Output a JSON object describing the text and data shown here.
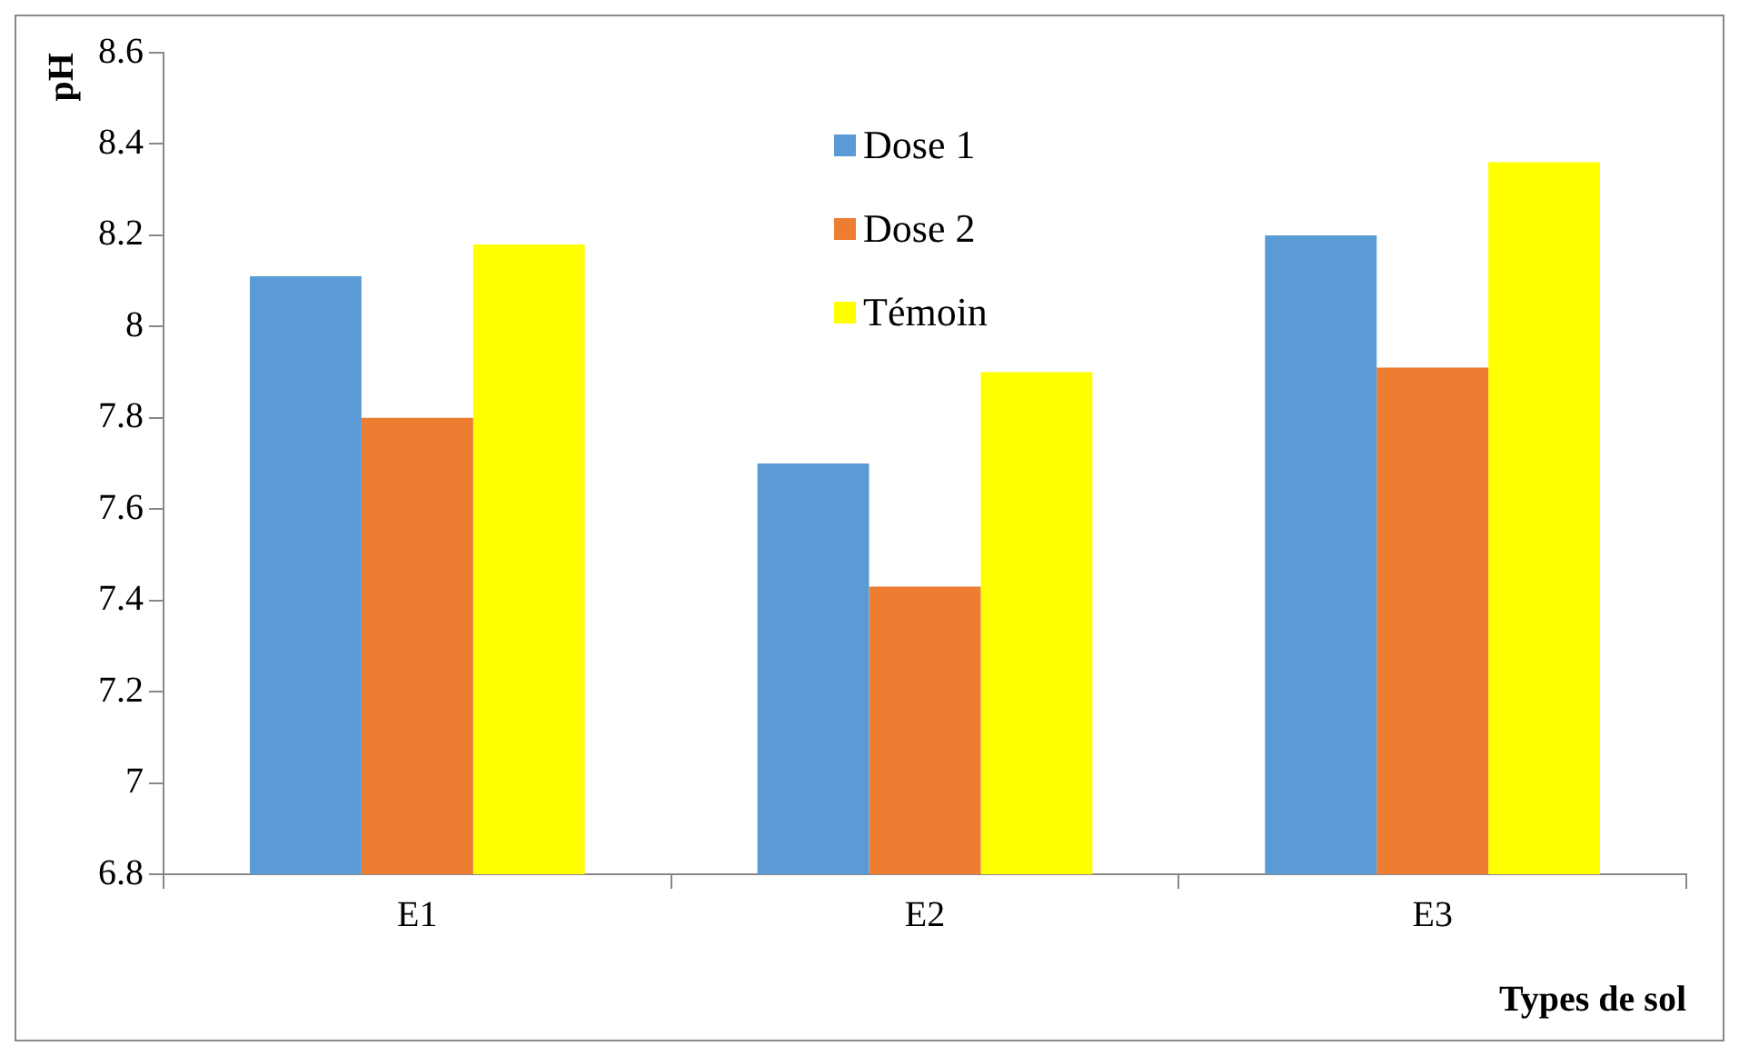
{
  "chart_data": {
    "type": "bar",
    "xlabel": "Types de sol",
    "ylabel": "pH",
    "categories": [
      "E1",
      "E2",
      "E3"
    ],
    "series": [
      {
        "name": "Dose 1",
        "color": "#5b9bd5",
        "values": [
          8.11,
          7.7,
          8.2
        ]
      },
      {
        "name": "Dose 2",
        "color": "#ed7d31",
        "values": [
          7.8,
          7.43,
          7.91
        ]
      },
      {
        "name": "Témoin",
        "color": "#ffff00",
        "values": [
          8.18,
          7.9,
          8.36
        ]
      }
    ],
    "ylim": [
      6.8,
      8.6
    ],
    "yticks": [
      6.8,
      7,
      7.2,
      7.4,
      7.6,
      7.8,
      8,
      8.2,
      8.4,
      8.6
    ],
    "grid": false,
    "legend": "top"
  }
}
